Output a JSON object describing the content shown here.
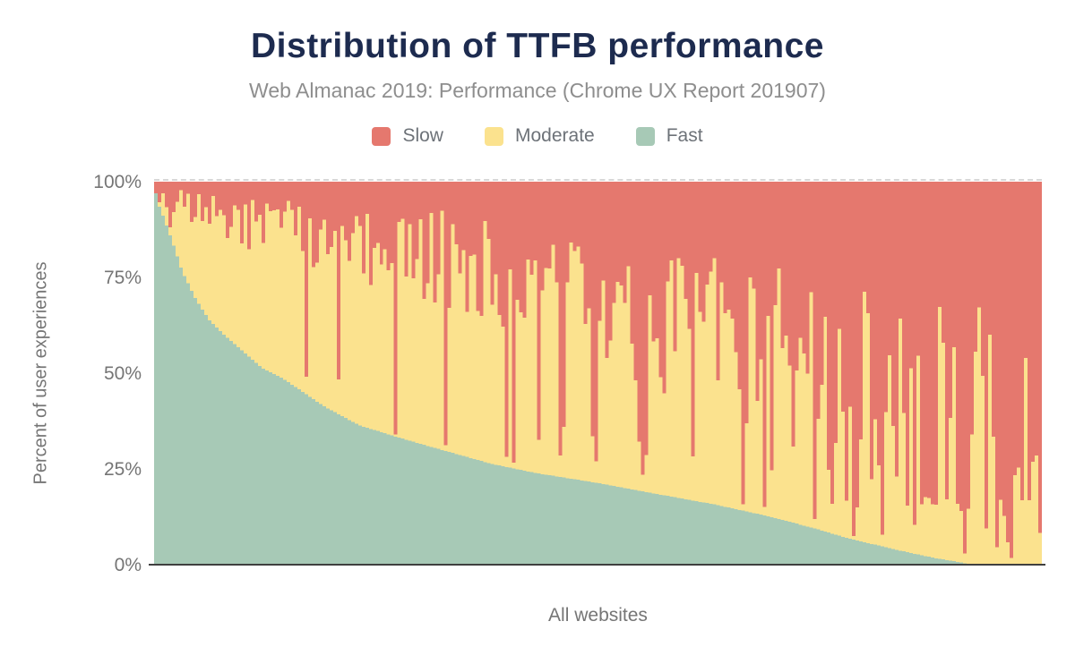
{
  "chart_data": {
    "type": "stacked-bar-distribution",
    "title": "Distribution of TTFB performance",
    "subtitle": "Web Almanac 2019: Performance (Chrome UX Report 201907)",
    "xlabel": "All websites",
    "ylabel": "Percent of user experiences",
    "ylim": [
      0,
      100
    ],
    "y_ticks": [
      "100%",
      "75%",
      "50%",
      "25%",
      "0%"
    ],
    "y_tick_values": [
      100,
      75,
      50,
      25,
      0
    ],
    "legend_position": "top",
    "grid": "dashed line at 100% only",
    "series": [
      {
        "name": "Slow",
        "color": "#e5786e"
      },
      {
        "name": "Moderate",
        "color": "#fbe28e"
      },
      {
        "name": "Fast",
        "color": "#a7c9b6"
      }
    ],
    "colors": {
      "title": "#1d2b4f",
      "subtitle": "#8e8e8e",
      "axis_text": "#757575",
      "legend_text": "#6d7278",
      "axis_line": "#3f3f3f",
      "grid_line": "#d8d8d8"
    },
    "n_bars": 248,
    "random_seed": 20190701,
    "bars_note": "one bar per website, stacked to 100%, sorted by Fast% descending; Fast boundary read from pixels, Slow boundary is noisy",
    "fast_curve": [
      [
        0,
        97
      ],
      [
        0.004,
        93.5
      ],
      [
        0.01,
        90
      ],
      [
        0.02,
        83.5
      ],
      [
        0.03,
        76.5
      ],
      [
        0.045,
        69.5
      ],
      [
        0.06,
        64
      ],
      [
        0.08,
        59.5
      ],
      [
        0.1,
        55.5
      ],
      [
        0.12,
        51.5
      ],
      [
        0.145,
        48.5
      ],
      [
        0.19,
        41.5
      ],
      [
        0.23,
        36.5
      ],
      [
        0.28,
        33
      ],
      [
        0.33,
        29.7
      ],
      [
        0.38,
        26.5
      ],
      [
        0.43,
        24.1
      ],
      [
        0.5,
        21.5
      ],
      [
        0.57,
        18.5
      ],
      [
        0.63,
        16
      ],
      [
        0.684,
        13.3
      ],
      [
        0.74,
        10
      ],
      [
        0.785,
        7
      ],
      [
        0.84,
        4
      ],
      [
        0.88,
        2
      ],
      [
        0.916,
        0.6
      ],
      [
        0.935,
        0
      ],
      [
        1,
        0
      ]
    ],
    "slow_median": [
      [
        0,
        4
      ],
      [
        0.1,
        9
      ],
      [
        0.2,
        13
      ],
      [
        0.3,
        16
      ],
      [
        0.4,
        20
      ],
      [
        0.5,
        26
      ],
      [
        0.6,
        32
      ],
      [
        0.7,
        38
      ],
      [
        0.8,
        46
      ],
      [
        0.9,
        54
      ],
      [
        1,
        60
      ]
    ],
    "slow_sigma": [
      [
        0,
        4
      ],
      [
        0.15,
        8
      ],
      [
        0.3,
        12
      ],
      [
        0.5,
        18
      ],
      [
        0.7,
        24
      ],
      [
        0.85,
        30
      ],
      [
        1,
        34
      ]
    ],
    "spike_probability": [
      [
        0,
        0.02
      ],
      [
        0.3,
        0.08
      ],
      [
        0.5,
        0.12
      ],
      [
        0.7,
        0.17
      ],
      [
        1,
        0.24
      ]
    ],
    "slow_min": 1.2,
    "spike_depth_range": [
      0.82,
      1.0
    ]
  }
}
